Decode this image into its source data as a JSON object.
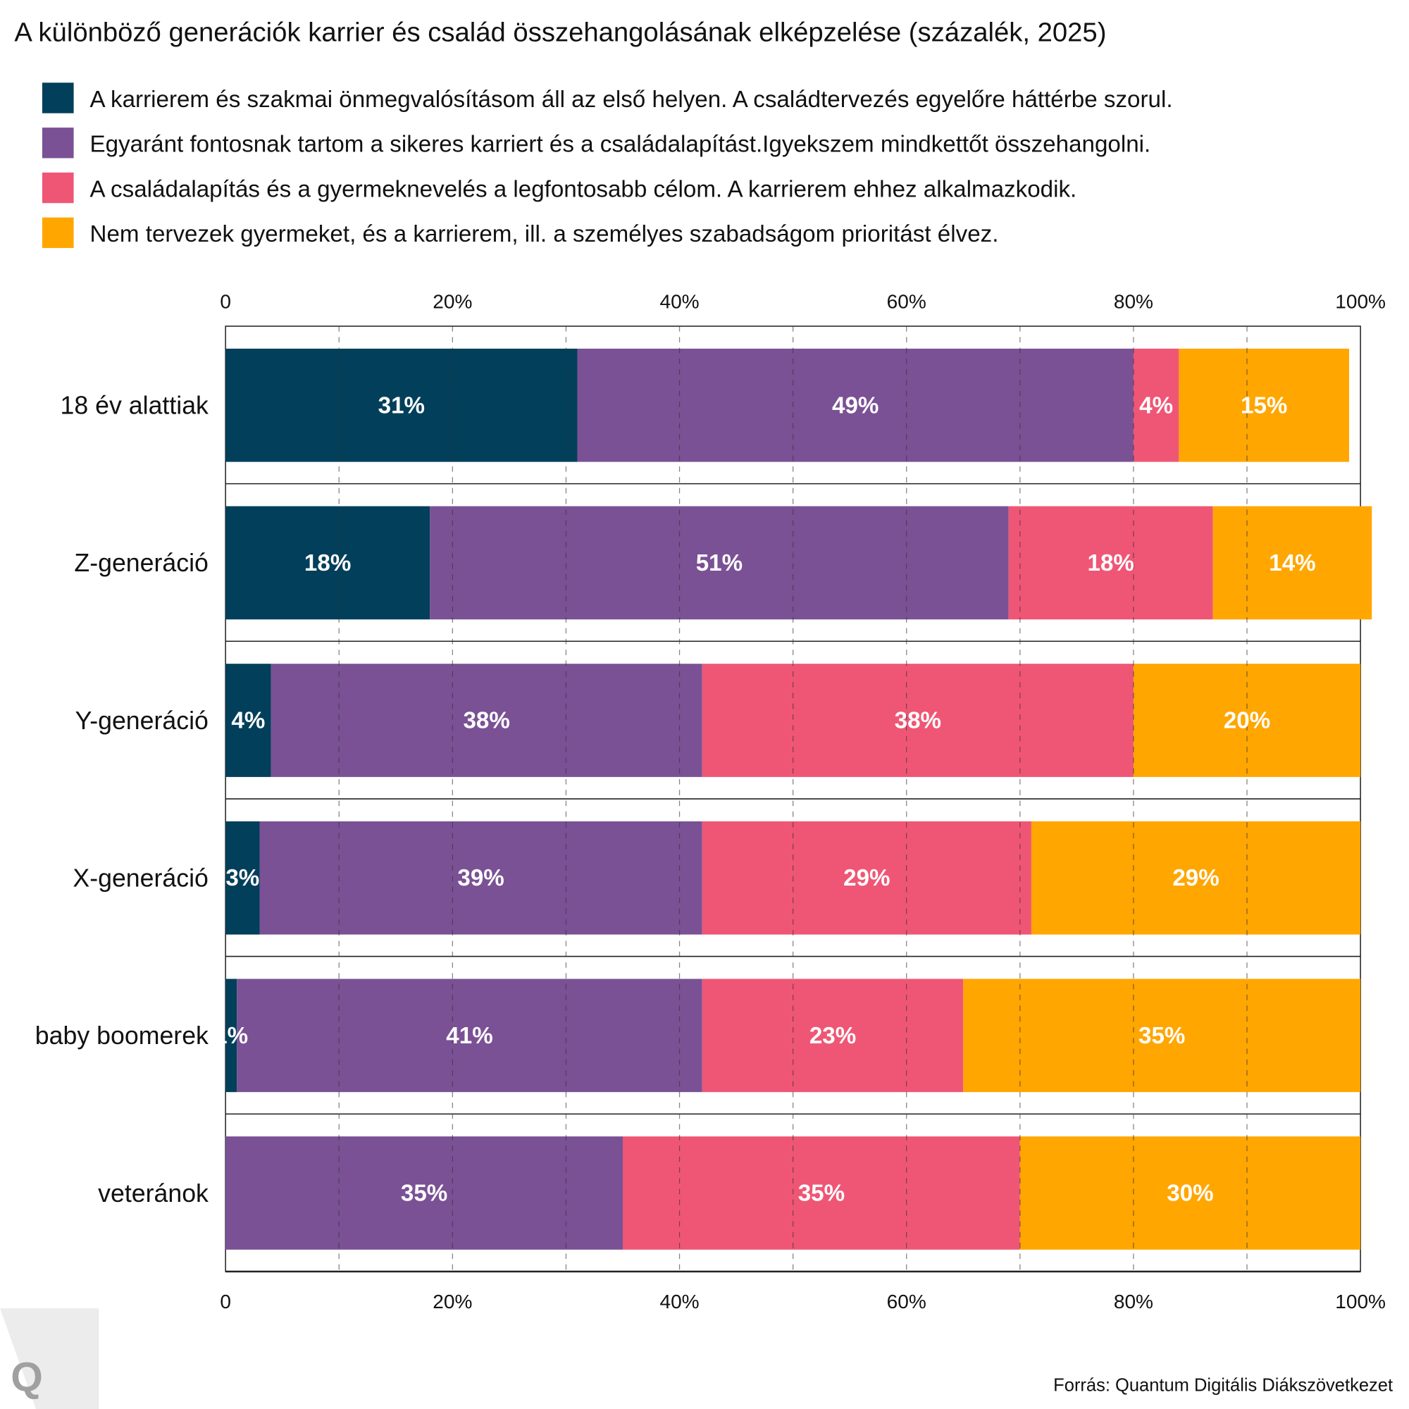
{
  "chart_data": {
    "type": "bar",
    "orientation": "horizontal",
    "stacked": true,
    "title": "A különböző generációk karrier és család összehangolásának elképzelése (százalék, 2025)",
    "categories": [
      "18 év alattiak",
      "Z-generáció",
      "Y-generáció",
      "X-generáció",
      "baby boomerek",
      "veteránok"
    ],
    "series": [
      {
        "name": "A karrierem és szakmai önmegvalósításom áll az első helyen. A családtervezés egyelőre háttérbe szorul.",
        "color": "#023f5a",
        "values": [
          31,
          18,
          4,
          3,
          1,
          0
        ]
      },
      {
        "name": "Egyaránt fontosnak tartom a sikeres karriert és a családalapítást.Igyekszem mindkettőt összehangolni.",
        "color": "#7a5195",
        "values": [
          49,
          51,
          38,
          39,
          41,
          35
        ]
      },
      {
        "name": "A családalapítás és a gyermeknevelés a legfontosabb célom. A karrierem ehhez alkalmazkodik.",
        "color": "#ef5675",
        "values": [
          4,
          18,
          38,
          29,
          23,
          35
        ]
      },
      {
        "name": "Nem tervezek gyermeket, és a karrierem, ill. a személyes szabadságom prioritást élvez.",
        "color": "#ffa600",
        "values": [
          15,
          14,
          20,
          29,
          35,
          30
        ]
      }
    ],
    "xlim": [
      0,
      100
    ],
    "xticks": [
      "0",
      "20%",
      "40%",
      "60%",
      "80%",
      "100%"
    ],
    "tick_values": [
      0,
      20,
      40,
      60,
      80,
      100
    ],
    "axis_position": "top and bottom",
    "grid": true,
    "legend_position": "top",
    "source": "Forrás: Quantum Digitális Diákszövetkezet"
  },
  "logo": "Q"
}
